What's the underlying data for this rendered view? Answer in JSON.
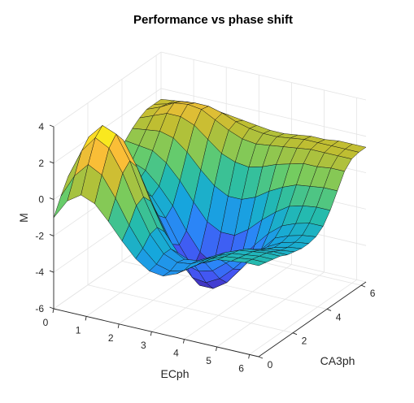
{
  "chart_data": {
    "type": "surface",
    "title": "Performance vs phase shift",
    "xlabel": "ECph",
    "ylabel": "CA3ph",
    "zlabel": "M",
    "xlim": [
      0,
      6.283
    ],
    "ylim": [
      0,
      6.283
    ],
    "zlim": [
      -6,
      4
    ],
    "xticks": [
      "0",
      "1",
      "2",
      "3",
      "4",
      "5",
      "6"
    ],
    "yticks": [
      "0",
      "2",
      "4",
      "6"
    ],
    "zticks": [
      "4",
      "2",
      "0",
      "-2",
      "-4",
      "-6"
    ],
    "grid": true,
    "colormap": "parula",
    "grid_size": 16,
    "corner_values": {
      "ECph_0_CA3ph_0": -1.0,
      "ECph_max_CA3ph_max": 1.4
    },
    "surface_z": [
      [
        -1.0,
        -0.1,
        0.7,
        1.0,
        0.6,
        -0.2,
        -0.8,
        -1.0,
        -0.7,
        -0.1,
        0.5,
        0.9,
        1.2,
        1.4,
        1.4,
        1.4
      ],
      [
        0.1,
        1.2,
        2.3,
        2.8,
        2.3,
        1.4,
        0.2,
        -0.2,
        -0.5,
        -0.2,
        0.4,
        1.0,
        1.5,
        1.7,
        1.6,
        1.5
      ],
      [
        0.6,
        2.0,
        3.2,
        3.6,
        3.0,
        2.0,
        0.7,
        -0.3,
        -0.8,
        -0.5,
        0.3,
        1.1,
        1.8,
        2.1,
        1.9,
        1.6
      ],
      [
        0.3,
        1.6,
        2.8,
        3.3,
        2.7,
        1.4,
        0.1,
        -1.0,
        -1.5,
        -1.2,
        -0.2,
        0.9,
        1.8,
        2.2,
        2.0,
        1.6
      ],
      [
        -0.5,
        0.5,
        1.6,
        2.0,
        1.4,
        0.2,
        -1.1,
        -2.1,
        -2.5,
        -2.1,
        -1.0,
        0.3,
        1.5,
        2.1,
        2.0,
        1.5
      ],
      [
        -1.4,
        -0.8,
        0.0,
        0.2,
        -0.3,
        -1.4,
        -2.6,
        -3.5,
        -3.8,
        -3.3,
        -2.0,
        -0.5,
        0.9,
        1.7,
        1.8,
        1.4
      ],
      [
        -2.2,
        -1.9,
        -1.4,
        -1.3,
        -1.8,
        -2.8,
        -3.9,
        -4.7,
        -4.9,
        -4.3,
        -2.9,
        -1.2,
        0.3,
        1.3,
        1.5,
        1.3
      ],
      [
        -2.7,
        -2.6,
        -2.3,
        -2.3,
        -2.8,
        -3.7,
        -4.7,
        -5.4,
        -5.5,
        -4.8,
        -3.3,
        -1.6,
        0.0,
        1.0,
        1.3,
        1.2
      ],
      [
        -2.8,
        -2.8,
        -2.6,
        -2.7,
        -3.1,
        -3.9,
        -4.8,
        -5.4,
        -5.4,
        -4.7,
        -3.3,
        -1.6,
        -0.1,
        0.9,
        1.2,
        1.1
      ],
      [
        -2.5,
        -2.6,
        -2.5,
        -2.6,
        -3.0,
        -3.7,
        -4.4,
        -4.9,
        -4.8,
        -4.1,
        -2.8,
        -1.3,
        0.1,
        1.0,
        1.2,
        1.1
      ],
      [
        -2.0,
        -2.1,
        -2.1,
        -2.2,
        -2.6,
        -3.1,
        -3.7,
        -4.0,
        -3.9,
        -3.2,
        -2.1,
        -0.8,
        0.4,
        1.1,
        1.3,
        1.2
      ],
      [
        -1.5,
        -1.6,
        -1.7,
        -1.8,
        -2.1,
        -2.5,
        -2.9,
        -3.1,
        -3.0,
        -2.4,
        -1.5,
        -0.4,
        0.6,
        1.2,
        1.4,
        1.3
      ],
      [
        -1.2,
        -1.3,
        -1.4,
        -1.5,
        -1.7,
        -2.0,
        -2.3,
        -2.4,
        -2.2,
        -1.8,
        -1.0,
        -0.1,
        0.8,
        1.3,
        1.4,
        1.3
      ],
      [
        -1.1,
        -1.2,
        -1.3,
        -1.4,
        -1.6,
        -1.8,
        -2.0,
        -2.0,
        -1.9,
        -1.5,
        -0.8,
        0.0,
        0.8,
        1.3,
        1.4,
        1.4
      ],
      [
        -1.0,
        -1.1,
        -1.2,
        -1.3,
        -1.5,
        -1.7,
        -1.8,
        -1.8,
        -1.7,
        -1.3,
        -0.7,
        0.1,
        0.9,
        1.3,
        1.4,
        1.4
      ],
      [
        -1.0,
        -1.1,
        -1.2,
        -1.3,
        -1.5,
        -1.6,
        -1.7,
        -1.7,
        -1.6,
        -1.3,
        -0.7,
        0.1,
        0.9,
        1.3,
        1.4,
        1.4
      ]
    ]
  }
}
